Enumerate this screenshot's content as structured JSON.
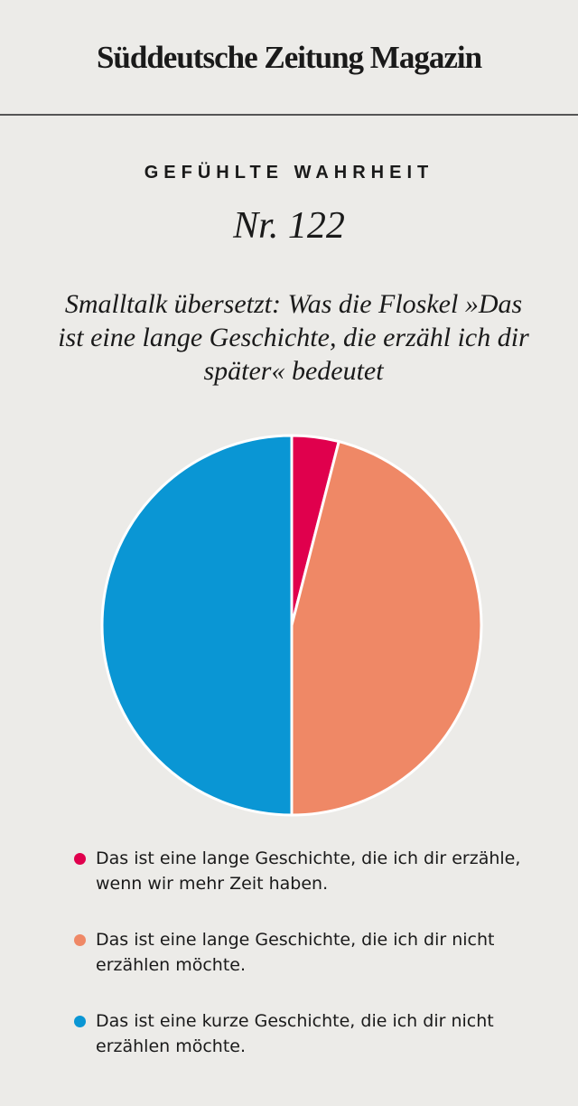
{
  "masthead": "Süddeutsche Zeitung Magazin",
  "kicker": "GEFÜHLTE WAHRHEIT",
  "issue": "Nr. 122",
  "chart_data": {
    "type": "pie",
    "title": "Smalltalk übersetzt: Was die Floskel »Das ist eine lange Geschichte, die erzähl ich dir später« bedeutet",
    "categories": [
      "Das ist eine lange Geschichte, die ich dir erzähle, wenn wir mehr Zeit haben.",
      "Das ist eine lange Geschichte, die ich dir nicht erzählen möchte.",
      "Das ist eine kurze Geschichte, die ich dir nicht erzählen möchte."
    ],
    "values": [
      4,
      46,
      50
    ],
    "colors": [
      "#e0004d",
      "#ef8866",
      "#0a96d4"
    ]
  }
}
